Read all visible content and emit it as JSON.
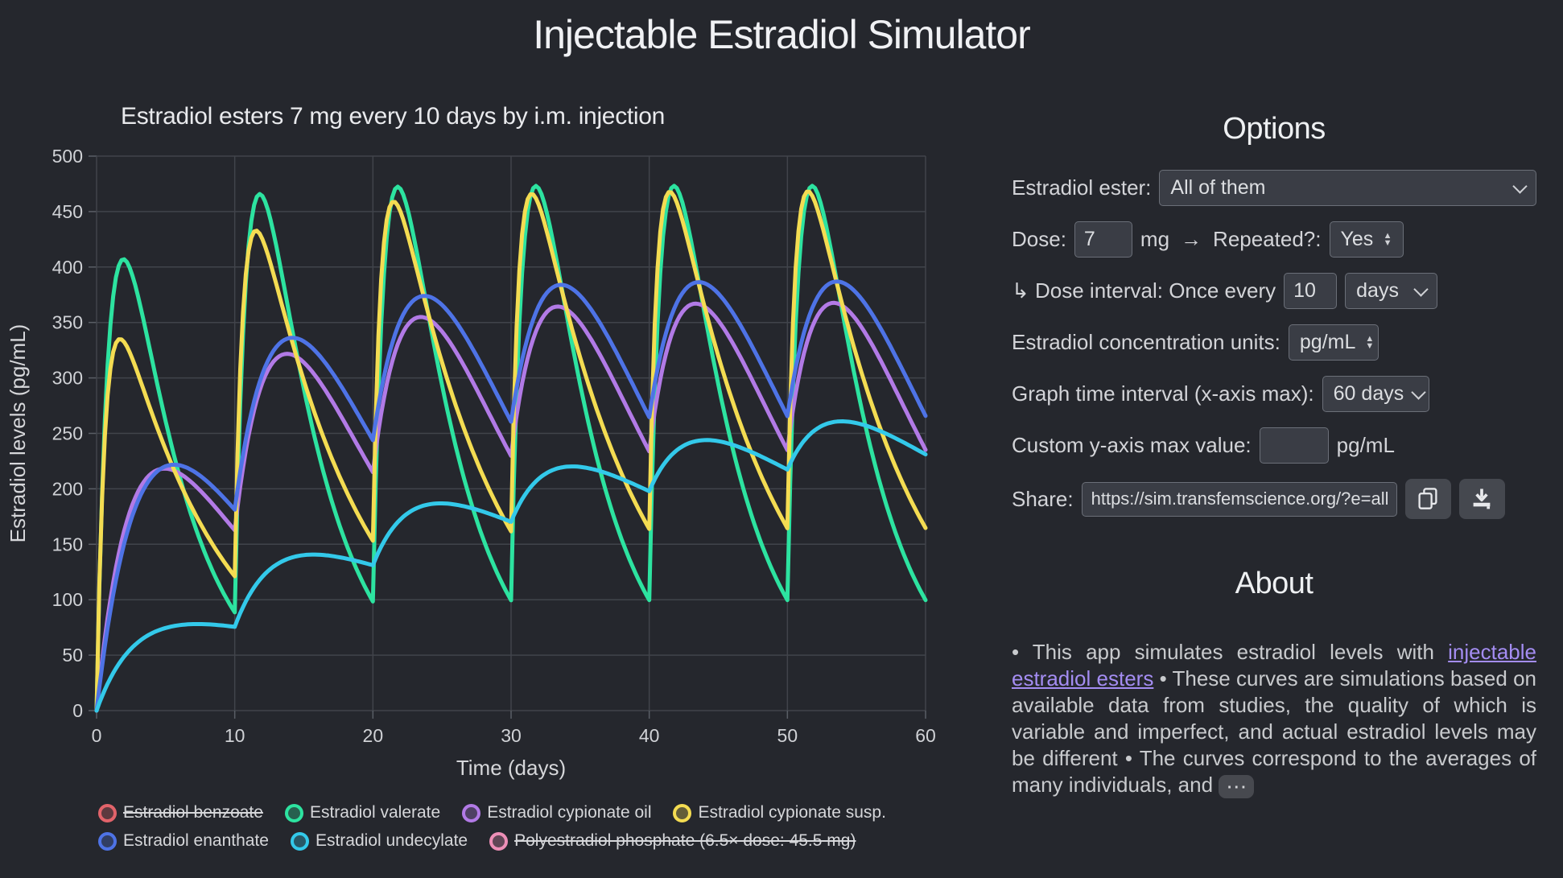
{
  "title": "Injectable Estradiol Simulator",
  "colors": {
    "background": "#25272d",
    "grid": "#41444b",
    "axis": "#5a5e66",
    "tick_text": "#d0d2d6",
    "heading_text": "#eef0f2",
    "body_text": "#c8cacd",
    "link": "#a48df2",
    "control_bg": "#3a3d45",
    "control_border": "#6b6f78"
  },
  "chart_data": {
    "type": "line",
    "title": "Estradiol esters 7 mg every 10 days by i.m. injection",
    "xlabel": "Time (days)",
    "ylabel": "Estradiol levels (pg/mL)",
    "xlim": [
      0,
      60
    ],
    "ylim": [
      0,
      500
    ],
    "xticks": [
      0,
      10,
      20,
      30,
      40,
      50,
      60
    ],
    "yticks": [
      0,
      50,
      100,
      150,
      200,
      250,
      300,
      350,
      400,
      450,
      500
    ],
    "grid": true,
    "legend_position": "bottom",
    "dose_mg": 7,
    "dose_interval_days": 10,
    "dose_days": [
      0,
      10,
      20,
      30,
      40,
      50
    ],
    "legend_rows": [
      [
        0,
        1,
        2,
        3
      ],
      [
        4,
        5,
        6
      ]
    ],
    "series": [
      {
        "name": "Estradiol benzoate",
        "color": "#e2636a",
        "enabled": false,
        "struck": true,
        "z": 0
      },
      {
        "name": "Estradiol valerate",
        "color": "#2de3a0",
        "enabled": true,
        "struck": false,
        "z": 1,
        "model": {
          "type": "bateman",
          "ka": 1.0,
          "ke": 0.22,
          "scale": 800
        },
        "approx_peaks_pg_ml": [
          412,
          462,
          468,
          468,
          468,
          468
        ],
        "approx_trough_pg_ml": [
          90,
          95,
          100,
          100,
          100
        ]
      },
      {
        "name": "Estradiol cypionate oil",
        "color": "#b27ae6",
        "enabled": true,
        "struck": false,
        "z": 2,
        "model": {
          "type": "bateman",
          "ka": 0.3,
          "ke": 0.13,
          "scale": 730
        },
        "approx_peaks_pg_ml": [
          218,
          314,
          342,
          350,
          353,
          353
        ]
      },
      {
        "name": "Estradiol cypionate susp.",
        "color": "#f4dc52",
        "enabled": true,
        "struck": false,
        "z": 3,
        "model": {
          "type": "bateman",
          "ka": 1.6,
          "ke": 0.133,
          "scale": 458
        },
        "approx_peaks_pg_ml": [
          335,
          430,
          455,
          460,
          462,
          462
        ]
      },
      {
        "name": "Estradiol enanthate",
        "color": "#4e73e6",
        "enabled": true,
        "struck": false,
        "z": 4,
        "model": {
          "type": "bateman",
          "ka": 0.21,
          "ke": 0.15,
          "scale": 1800
        },
        "approx_peaks_pg_ml": [
          222,
          323,
          351,
          358,
          360,
          360
        ]
      },
      {
        "name": "Estradiol undecylate",
        "color": "#33c9ea",
        "enabled": true,
        "struck": false,
        "z": 5,
        "model": {
          "type": "bateman",
          "ka": 0.35,
          "ke": 0.035,
          "scale": 112
        },
        "approx_values_pg_ml": {
          "day10": 73,
          "day20": 131,
          "day30": 170,
          "day40": 198,
          "day55_peak": 255,
          "day60": 230
        }
      },
      {
        "name": "Polyestradiol phosphate (6.5× dose: 45.5 mg)",
        "color": "#ee8fb7",
        "enabled": false,
        "struck": true,
        "z": 0
      }
    ]
  },
  "options": {
    "heading": "Options",
    "ester_label": "Estradiol ester:",
    "ester_value": "All of them",
    "dose_label": "Dose:",
    "dose_value": "7",
    "dose_unit": "mg",
    "arrow": "→",
    "repeated_label": "Repeated?:",
    "repeated_value": "Yes",
    "interval_label": "↳ Dose interval: Once every",
    "interval_value": "10",
    "interval_unit_value": "days",
    "units_label": "Estradiol concentration units:",
    "units_value": "pg/mL",
    "graph_interval_label": "Graph time interval (x-axis max):",
    "graph_interval_value": "60 days",
    "ymax_label": "Custom y-axis max value:",
    "ymax_value": "",
    "ymax_unit": "pg/mL",
    "share_label": "Share:",
    "share_url": "https://sim.transfemscience.org/?e=all_e"
  },
  "about": {
    "heading": "About",
    "text_before_link": "• This app simulates estradiol levels with ",
    "link_text": "injectable estradiol esters",
    "text_after_link": " • These curves are simulations based on available data from studies, the quality of which is variable and imperfect, and actual estradiol levels may be different • The curves correspond to the averages of many individuals, and ",
    "expand_button": "⋯"
  }
}
